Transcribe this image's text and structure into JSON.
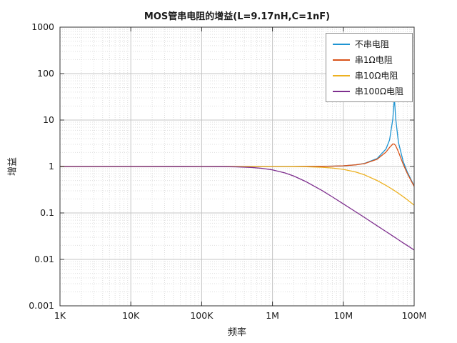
{
  "chart_data": {
    "type": "line",
    "title": "MOS管串电阻的增益(L=9.17nH,C=1nF)",
    "xlabel": "频率",
    "ylabel": "增益",
    "x_scale": "log",
    "y_scale": "log",
    "xlim": [
      1000,
      100000000
    ],
    "ylim": [
      0.001,
      1000
    ],
    "grid": true,
    "minor_grid": true,
    "legend_position": "top-right",
    "x_ticks": [
      {
        "v": 1000,
        "label": "1K"
      },
      {
        "v": 10000,
        "label": "10K"
      },
      {
        "v": 100000,
        "label": "100K"
      },
      {
        "v": 1000000,
        "label": "1M"
      },
      {
        "v": 10000000,
        "label": "10M"
      },
      {
        "v": 100000000,
        "label": "100M"
      }
    ],
    "y_ticks": [
      {
        "v": 1000,
        "label": "1000"
      },
      {
        "v": 100,
        "label": "100"
      },
      {
        "v": 10,
        "label": "10"
      },
      {
        "v": 1,
        "label": "1"
      },
      {
        "v": 0.1,
        "label": "0.1"
      },
      {
        "v": 0.01,
        "label": "0.01"
      },
      {
        "v": 0.001,
        "label": "0.001"
      }
    ],
    "x": [
      1000,
      10000,
      100000,
      200000,
      300000,
      500000,
      700000,
      1000000,
      1500000,
      2000000,
      3000000,
      5000000,
      7000000,
      10000000,
      15000000,
      20000000,
      30000000,
      40000000,
      45000000,
      50000000,
      52600000,
      55000000,
      60000000,
      70000000,
      80000000,
      100000000
    ],
    "series": [
      {
        "name": "不串电阻",
        "color": "#1e94d2",
        "values": [
          1,
          1,
          1,
          1,
          1,
          1,
          1,
          1.0004,
          1.0008,
          1.0015,
          1.0033,
          1.0091,
          1.0181,
          1.0375,
          1.089,
          1.169,
          1.483,
          2.375,
          3.745,
          10.5,
          30,
          10.5,
          3.3,
          1.29,
          0.76,
          0.382
        ]
      },
      {
        "name": "串1Ω电阻",
        "color": "#D95319",
        "values": [
          1,
          1,
          1,
          1,
          1,
          1,
          1,
          1.0004,
          1.0008,
          1.0014,
          1.0031,
          1.0086,
          1.017,
          1.035,
          1.083,
          1.157,
          1.429,
          2.039,
          2.572,
          3.047,
          3.027,
          2.79,
          2.068,
          1.124,
          0.71,
          0.371
        ]
      },
      {
        "name": "串10Ω电阻",
        "color": "#EDB120",
        "values": [
          1,
          1,
          1,
          1,
          1,
          0.9995,
          0.999,
          0.998,
          0.9964,
          0.9936,
          0.9858,
          0.962,
          0.929,
          0.869,
          0.76,
          0.658,
          0.4995,
          0.392,
          0.352,
          0.318,
          0.303,
          0.289,
          0.2645,
          0.224,
          0.1925,
          0.147
        ]
      },
      {
        "name": "串100Ω电阻",
        "color": "#7E2F8E",
        "values": [
          1,
          1,
          0.998,
          0.992,
          0.983,
          0.954,
          0.9155,
          0.847,
          0.728,
          0.623,
          0.469,
          0.304,
          0.222,
          0.157,
          0.1056,
          0.0793,
          0.053,
          0.0398,
          0.0354,
          0.0318,
          0.0303,
          0.0289,
          0.0265,
          0.0227,
          0.0199,
          0.0159
        ]
      }
    ]
  }
}
